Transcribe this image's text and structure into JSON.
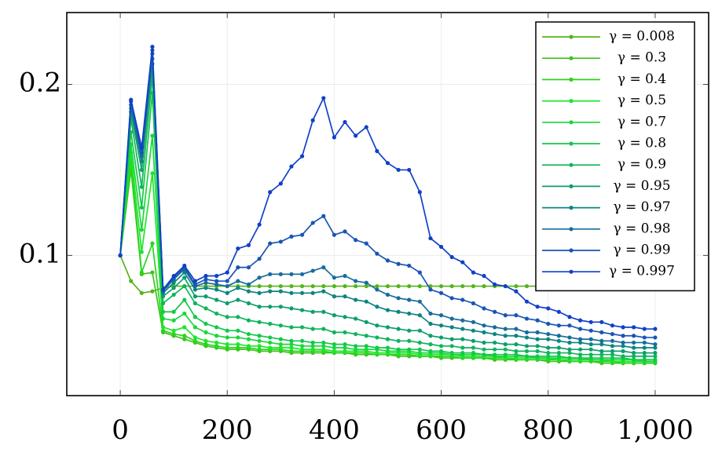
{
  "chart_data": {
    "type": "line",
    "x": [
      0,
      20,
      40,
      60,
      80,
      100,
      120,
      140,
      160,
      180,
      200,
      220,
      240,
      260,
      280,
      300,
      320,
      340,
      360,
      380,
      400,
      420,
      440,
      460,
      480,
      500,
      520,
      540,
      560,
      580,
      600,
      620,
      640,
      660,
      680,
      700,
      720,
      740,
      760,
      780,
      800,
      820,
      840,
      860,
      880,
      900,
      920,
      940,
      960,
      980,
      1000
    ],
    "xlim": [
      -100,
      1100
    ],
    "xticks": [
      0,
      200,
      400,
      600,
      800,
      {
        "value": 1000,
        "label": "1,000"
      }
    ],
    "ylim": [
      0.018,
      0.242
    ],
    "yticks": [
      0.1,
      0.2
    ],
    "grid": true,
    "legend": "upper right",
    "series": [
      {
        "name": "γ = 0.008",
        "color": "#55b41c",
        "values": [
          0.1,
          0.085,
          0.078,
          0.079,
          0.081,
          0.082,
          0.082,
          0.082,
          0.082,
          0.082,
          0.082,
          0.082,
          0.082,
          0.082,
          0.082,
          0.082,
          0.082,
          0.082,
          0.082,
          0.082,
          0.082,
          0.082,
          0.082,
          0.082,
          0.082,
          0.082,
          0.082,
          0.082,
          0.082,
          0.082,
          0.082,
          0.082,
          0.082,
          0.082,
          0.082,
          0.082,
          0.082,
          0.082,
          0.082,
          0.082,
          0.082,
          0.082,
          0.082,
          0.082,
          0.082,
          0.082,
          0.083,
          0.083,
          0.083,
          0.083,
          0.083
        ]
      },
      {
        "name": "γ = 0.3",
        "color": "#3cc41c",
        "values": [
          0.1,
          0.15,
          0.089,
          0.09,
          0.055,
          0.053,
          0.051,
          0.049,
          0.047,
          0.046,
          0.045,
          0.045,
          0.045,
          0.044,
          0.044,
          0.044,
          0.043,
          0.043,
          0.043,
          0.043,
          0.043,
          0.043,
          0.042,
          0.042,
          0.042,
          0.042,
          0.041,
          0.041,
          0.041,
          0.041,
          0.04,
          0.04,
          0.04,
          0.04,
          0.04,
          0.039,
          0.039,
          0.039,
          0.039,
          0.039,
          0.038,
          0.038,
          0.038,
          0.038,
          0.038,
          0.037,
          0.037,
          0.037,
          0.037,
          0.037,
          0.037
        ]
      },
      {
        "name": "γ = 0.4",
        "color": "#28d41e",
        "values": [
          0.1,
          0.155,
          0.09,
          0.107,
          0.056,
          0.054,
          0.053,
          0.05,
          0.048,
          0.047,
          0.046,
          0.046,
          0.046,
          0.045,
          0.045,
          0.045,
          0.044,
          0.044,
          0.044,
          0.044,
          0.043,
          0.043,
          0.043,
          0.043,
          0.042,
          0.042,
          0.042,
          0.042,
          0.041,
          0.041,
          0.041,
          0.041,
          0.04,
          0.04,
          0.04,
          0.04,
          0.04,
          0.039,
          0.039,
          0.039,
          0.039,
          0.039,
          0.038,
          0.038,
          0.038,
          0.038,
          0.038,
          0.037,
          0.037,
          0.037,
          0.037
        ]
      },
      {
        "name": "γ = 0.5",
        "color": "#1ee62a",
        "values": [
          0.1,
          0.16,
          0.102,
          0.148,
          0.058,
          0.056,
          0.058,
          0.052,
          0.05,
          0.049,
          0.048,
          0.048,
          0.047,
          0.047,
          0.046,
          0.046,
          0.046,
          0.045,
          0.045,
          0.045,
          0.044,
          0.044,
          0.044,
          0.044,
          0.043,
          0.043,
          0.043,
          0.043,
          0.042,
          0.042,
          0.042,
          0.042,
          0.041,
          0.041,
          0.041,
          0.041,
          0.04,
          0.04,
          0.04,
          0.04,
          0.04,
          0.039,
          0.039,
          0.039,
          0.039,
          0.039,
          0.038,
          0.038,
          0.038,
          0.038,
          0.038
        ]
      },
      {
        "name": "γ = 0.7",
        "color": "#1ad83a",
        "values": [
          0.1,
          0.165,
          0.115,
          0.17,
          0.063,
          0.062,
          0.066,
          0.058,
          0.055,
          0.053,
          0.052,
          0.052,
          0.051,
          0.05,
          0.049,
          0.048,
          0.048,
          0.047,
          0.047,
          0.047,
          0.046,
          0.046,
          0.045,
          0.045,
          0.045,
          0.044,
          0.044,
          0.044,
          0.043,
          0.043,
          0.043,
          0.042,
          0.042,
          0.042,
          0.042,
          0.041,
          0.041,
          0.041,
          0.041,
          0.04,
          0.04,
          0.04,
          0.04,
          0.04,
          0.039,
          0.039,
          0.039,
          0.039,
          0.039,
          0.038,
          0.038
        ]
      },
      {
        "name": "γ = 0.8",
        "color": "#14c84a",
        "values": [
          0.1,
          0.172,
          0.128,
          0.195,
          0.067,
          0.067,
          0.074,
          0.064,
          0.06,
          0.058,
          0.056,
          0.056,
          0.054,
          0.053,
          0.052,
          0.051,
          0.05,
          0.05,
          0.049,
          0.049,
          0.048,
          0.048,
          0.047,
          0.047,
          0.046,
          0.046,
          0.045,
          0.045,
          0.045,
          0.044,
          0.044,
          0.043,
          0.043,
          0.043,
          0.042,
          0.042,
          0.042,
          0.042,
          0.041,
          0.041,
          0.041,
          0.041,
          0.04,
          0.04,
          0.04,
          0.04,
          0.04,
          0.04,
          0.039,
          0.039,
          0.039
        ]
      },
      {
        "name": "γ = 0.9",
        "color": "#10b45c",
        "values": [
          0.1,
          0.18,
          0.14,
          0.205,
          0.072,
          0.077,
          0.082,
          0.072,
          0.069,
          0.066,
          0.064,
          0.064,
          0.062,
          0.061,
          0.06,
          0.059,
          0.058,
          0.058,
          0.057,
          0.057,
          0.055,
          0.055,
          0.054,
          0.053,
          0.052,
          0.051,
          0.05,
          0.05,
          0.049,
          0.048,
          0.047,
          0.047,
          0.046,
          0.046,
          0.045,
          0.045,
          0.045,
          0.044,
          0.044,
          0.044,
          0.043,
          0.043,
          0.043,
          0.042,
          0.042,
          0.042,
          0.042,
          0.041,
          0.041,
          0.041,
          0.041
        ]
      },
      {
        "name": "γ = 0.95",
        "color": "#0e9e6c",
        "values": [
          0.1,
          0.184,
          0.15,
          0.212,
          0.076,
          0.081,
          0.087,
          0.076,
          0.076,
          0.074,
          0.072,
          0.074,
          0.072,
          0.07,
          0.07,
          0.07,
          0.069,
          0.068,
          0.067,
          0.067,
          0.065,
          0.064,
          0.063,
          0.061,
          0.059,
          0.058,
          0.057,
          0.056,
          0.056,
          0.053,
          0.052,
          0.051,
          0.051,
          0.05,
          0.049,
          0.049,
          0.048,
          0.048,
          0.047,
          0.047,
          0.046,
          0.046,
          0.045,
          0.045,
          0.045,
          0.044,
          0.044,
          0.044,
          0.043,
          0.043,
          0.043
        ]
      },
      {
        "name": "γ = 0.97",
        "color": "#0c8580",
        "values": [
          0.1,
          0.186,
          0.155,
          0.215,
          0.078,
          0.084,
          0.09,
          0.08,
          0.081,
          0.08,
          0.078,
          0.081,
          0.079,
          0.078,
          0.079,
          0.079,
          0.078,
          0.078,
          0.078,
          0.079,
          0.076,
          0.076,
          0.074,
          0.073,
          0.07,
          0.068,
          0.067,
          0.066,
          0.065,
          0.06,
          0.059,
          0.058,
          0.057,
          0.056,
          0.055,
          0.054,
          0.053,
          0.053,
          0.052,
          0.051,
          0.051,
          0.05,
          0.049,
          0.049,
          0.048,
          0.048,
          0.047,
          0.047,
          0.046,
          0.046,
          0.046
        ]
      },
      {
        "name": "γ = 0.98",
        "color": "#186c9c",
        "values": [
          0.1,
          0.188,
          0.158,
          0.218,
          0.079,
          0.086,
          0.092,
          0.082,
          0.084,
          0.083,
          0.082,
          0.085,
          0.083,
          0.087,
          0.089,
          0.089,
          0.089,
          0.089,
          0.091,
          0.093,
          0.087,
          0.088,
          0.085,
          0.084,
          0.08,
          0.077,
          0.075,
          0.074,
          0.073,
          0.066,
          0.065,
          0.063,
          0.062,
          0.061,
          0.059,
          0.058,
          0.057,
          0.057,
          0.055,
          0.055,
          0.054,
          0.053,
          0.052,
          0.051,
          0.051,
          0.05,
          0.05,
          0.049,
          0.049,
          0.049,
          0.048
        ]
      },
      {
        "name": "γ = 0.99",
        "color": "#1a55b5",
        "values": [
          0.1,
          0.19,
          0.16,
          0.22,
          0.08,
          0.087,
          0.093,
          0.083,
          0.086,
          0.085,
          0.085,
          0.093,
          0.093,
          0.098,
          0.107,
          0.108,
          0.111,
          0.112,
          0.119,
          0.123,
          0.112,
          0.114,
          0.109,
          0.107,
          0.101,
          0.097,
          0.095,
          0.094,
          0.09,
          0.08,
          0.078,
          0.075,
          0.074,
          0.072,
          0.069,
          0.067,
          0.065,
          0.065,
          0.063,
          0.062,
          0.06,
          0.059,
          0.059,
          0.057,
          0.056,
          0.055,
          0.054,
          0.053,
          0.053,
          0.052,
          0.052
        ]
      },
      {
        "name": "γ = 0.997",
        "color": "#1040c8",
        "values": [
          0.1,
          0.191,
          0.163,
          0.222,
          0.08,
          0.088,
          0.094,
          0.085,
          0.088,
          0.088,
          0.09,
          0.104,
          0.106,
          0.118,
          0.137,
          0.142,
          0.152,
          0.158,
          0.179,
          0.192,
          0.169,
          0.178,
          0.17,
          0.175,
          0.161,
          0.154,
          0.15,
          0.15,
          0.137,
          0.11,
          0.105,
          0.099,
          0.096,
          0.09,
          0.088,
          0.083,
          0.082,
          0.079,
          0.073,
          0.07,
          0.069,
          0.067,
          0.064,
          0.062,
          0.061,
          0.061,
          0.059,
          0.058,
          0.058,
          0.057,
          0.057
        ]
      }
    ]
  }
}
